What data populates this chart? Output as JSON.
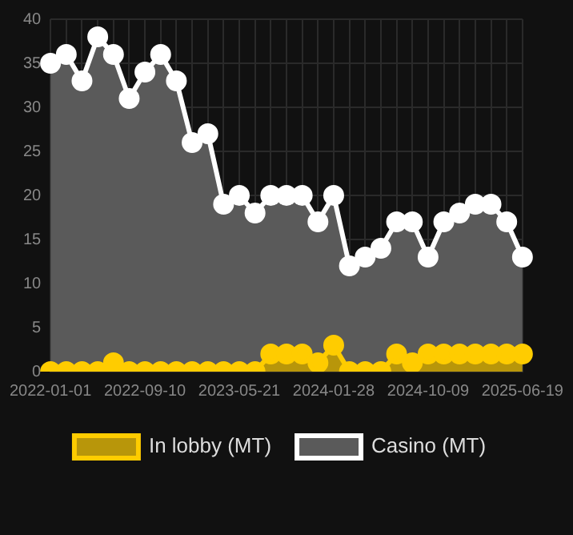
{
  "chart_data": {
    "type": "area",
    "categories": [
      "2022-01-01",
      null,
      null,
      null,
      null,
      null,
      "2022-09-10",
      null,
      null,
      null,
      null,
      null,
      "2023-05-21",
      null,
      null,
      null,
      null,
      null,
      "2024-01-28",
      null,
      null,
      null,
      null,
      null,
      "2024-10-09",
      null,
      null,
      null,
      null,
      null,
      "2025-06-19"
    ],
    "series": [
      {
        "name": "In lobby (MT)",
        "color": "#ffcc00",
        "values": [
          0,
          0,
          0,
          0,
          1,
          0,
          0,
          0,
          0,
          0,
          0,
          0,
          0,
          0,
          2,
          2,
          2,
          1,
          3,
          0,
          0,
          0,
          2,
          1,
          2,
          2,
          2,
          2,
          2,
          2,
          2
        ]
      },
      {
        "name": "Casino (MT)",
        "color": "#ffffff",
        "values": [
          35,
          36,
          33,
          38,
          36,
          31,
          34,
          36,
          33,
          26,
          27,
          19,
          20,
          18,
          20,
          20,
          20,
          17,
          20,
          12,
          13,
          14,
          17,
          17,
          13,
          17,
          18,
          19,
          19,
          17,
          13
        ]
      }
    ],
    "ylim": [
      0,
      40
    ],
    "yticks": [
      0,
      5,
      10,
      15,
      20,
      25,
      30,
      35,
      40
    ],
    "grid": true,
    "legend": "bottom",
    "marker": "circle"
  }
}
